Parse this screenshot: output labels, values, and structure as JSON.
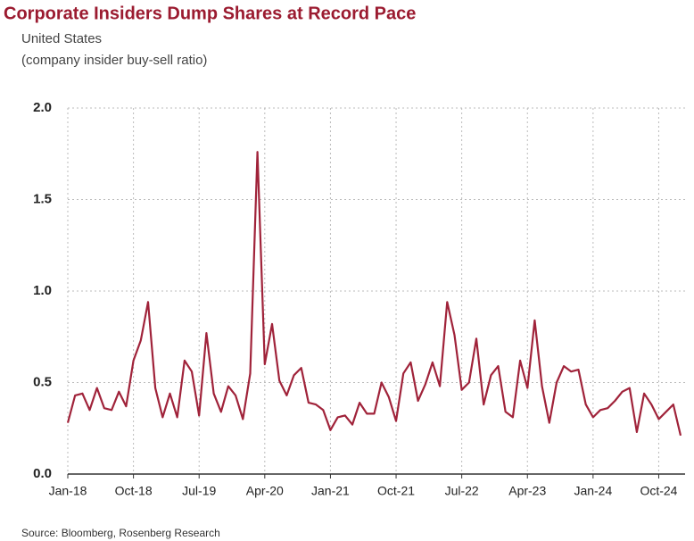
{
  "chart_data": {
    "type": "line",
    "title": "Corporate Insiders Dump Shares at Record Pace",
    "subtitle": "United States",
    "ylabel": "(company insider buy-sell ratio)",
    "source": "Source: Bloomberg, Rosenberg Research",
    "categories": [
      "Jan-18",
      null,
      null,
      null,
      null,
      null,
      null,
      null,
      null,
      "Oct-18",
      null,
      null,
      null,
      null,
      null,
      null,
      null,
      null,
      "Jul-19",
      null,
      null,
      null,
      null,
      null,
      null,
      null,
      null,
      "Apr-20",
      null,
      null,
      null,
      null,
      null,
      null,
      null,
      null,
      "Jan-21",
      null,
      null,
      null,
      null,
      null,
      null,
      null,
      null,
      "Oct-21",
      null,
      null,
      null,
      null,
      null,
      null,
      null,
      null,
      "Jul-22",
      null,
      null,
      null,
      null,
      null,
      null,
      null,
      null,
      "Apr-23",
      null,
      null,
      null,
      null,
      null,
      null,
      null,
      null,
      "Jan-24",
      null,
      null,
      null,
      null,
      null,
      null,
      null,
      null,
      "Oct-24",
      null,
      null,
      null
    ],
    "series": [
      {
        "name": "buy-sell ratio",
        "color": "#a0233a",
        "values": [
          0.28,
          0.43,
          0.44,
          0.35,
          0.47,
          0.36,
          0.35,
          0.45,
          0.37,
          0.62,
          0.73,
          0.94,
          0.47,
          0.31,
          0.44,
          0.31,
          0.62,
          0.56,
          0.32,
          0.77,
          0.44,
          0.34,
          0.48,
          0.43,
          0.3,
          0.55,
          1.76,
          0.6,
          0.82,
          0.51,
          0.43,
          0.54,
          0.58,
          0.39,
          0.38,
          0.35,
          0.24,
          0.31,
          0.32,
          0.27,
          0.39,
          0.33,
          0.33,
          0.5,
          0.42,
          0.29,
          0.55,
          0.61,
          0.4,
          0.49,
          0.61,
          0.48,
          0.94,
          0.76,
          0.46,
          0.5,
          0.74,
          0.38,
          0.54,
          0.59,
          0.34,
          0.31,
          0.62,
          0.47,
          0.84,
          0.48,
          0.28,
          0.5,
          0.59,
          0.56,
          0.57,
          0.38,
          0.31,
          0.35,
          0.36,
          0.4,
          0.45,
          0.47,
          0.23,
          0.44,
          0.38,
          0.3,
          0.34,
          0.38,
          0.21
        ]
      }
    ],
    "ylim": [
      0,
      2
    ],
    "yticks": [
      {
        "value": 0,
        "label": "0.0"
      },
      0.5,
      {
        "value": 1,
        "label": "1.0"
      },
      1.5,
      {
        "value": 2,
        "label": "2.0"
      }
    ],
    "grid": true
  }
}
